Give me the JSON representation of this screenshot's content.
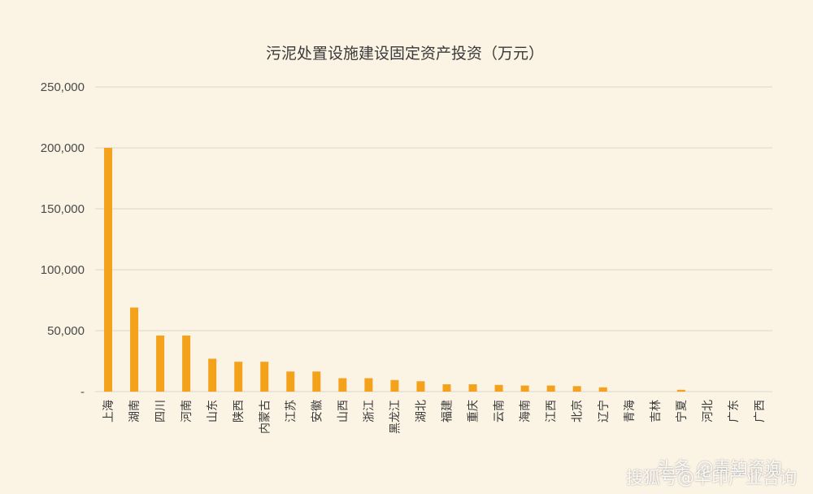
{
  "chart_data": {
    "type": "bar",
    "title": "污泥处置设施建设固定资产投资（万元）",
    "categories": [
      "上海",
      "湖南",
      "四川",
      "河南",
      "山东",
      "陕西",
      "内蒙古",
      "江苏",
      "安徽",
      "山西",
      "浙江",
      "黑龙江",
      "湖北",
      "福建",
      "重庆",
      "云南",
      "海南",
      "江西",
      "北京",
      "辽宁",
      "青海",
      "吉林",
      "宁夏",
      "河北",
      "广东",
      "广西"
    ],
    "values": [
      200000,
      69000,
      46000,
      46000,
      27000,
      24500,
      24500,
      16500,
      16500,
      11000,
      11000,
      9500,
      8500,
      6000,
      6000,
      5500,
      5000,
      5000,
      4500,
      3500,
      0,
      0,
      1500,
      0,
      0,
      0
    ],
    "ylim": [
      0,
      250000
    ],
    "yticks": [
      {
        "value": 0,
        "label": "-"
      },
      {
        "value": 50000,
        "label": "50,000"
      },
      {
        "value": 100000,
        "label": "100,000"
      },
      {
        "value": 150000,
        "label": "150,000"
      },
      {
        "value": 200000,
        "label": "200,000"
      },
      {
        "value": 250000,
        "label": "250,000"
      }
    ],
    "grid": true,
    "bar_color": "#f4a21c"
  },
  "watermarks": {
    "line1": "头条 @毒铂资询",
    "line2": "搜狐号@华印产业咨询"
  }
}
